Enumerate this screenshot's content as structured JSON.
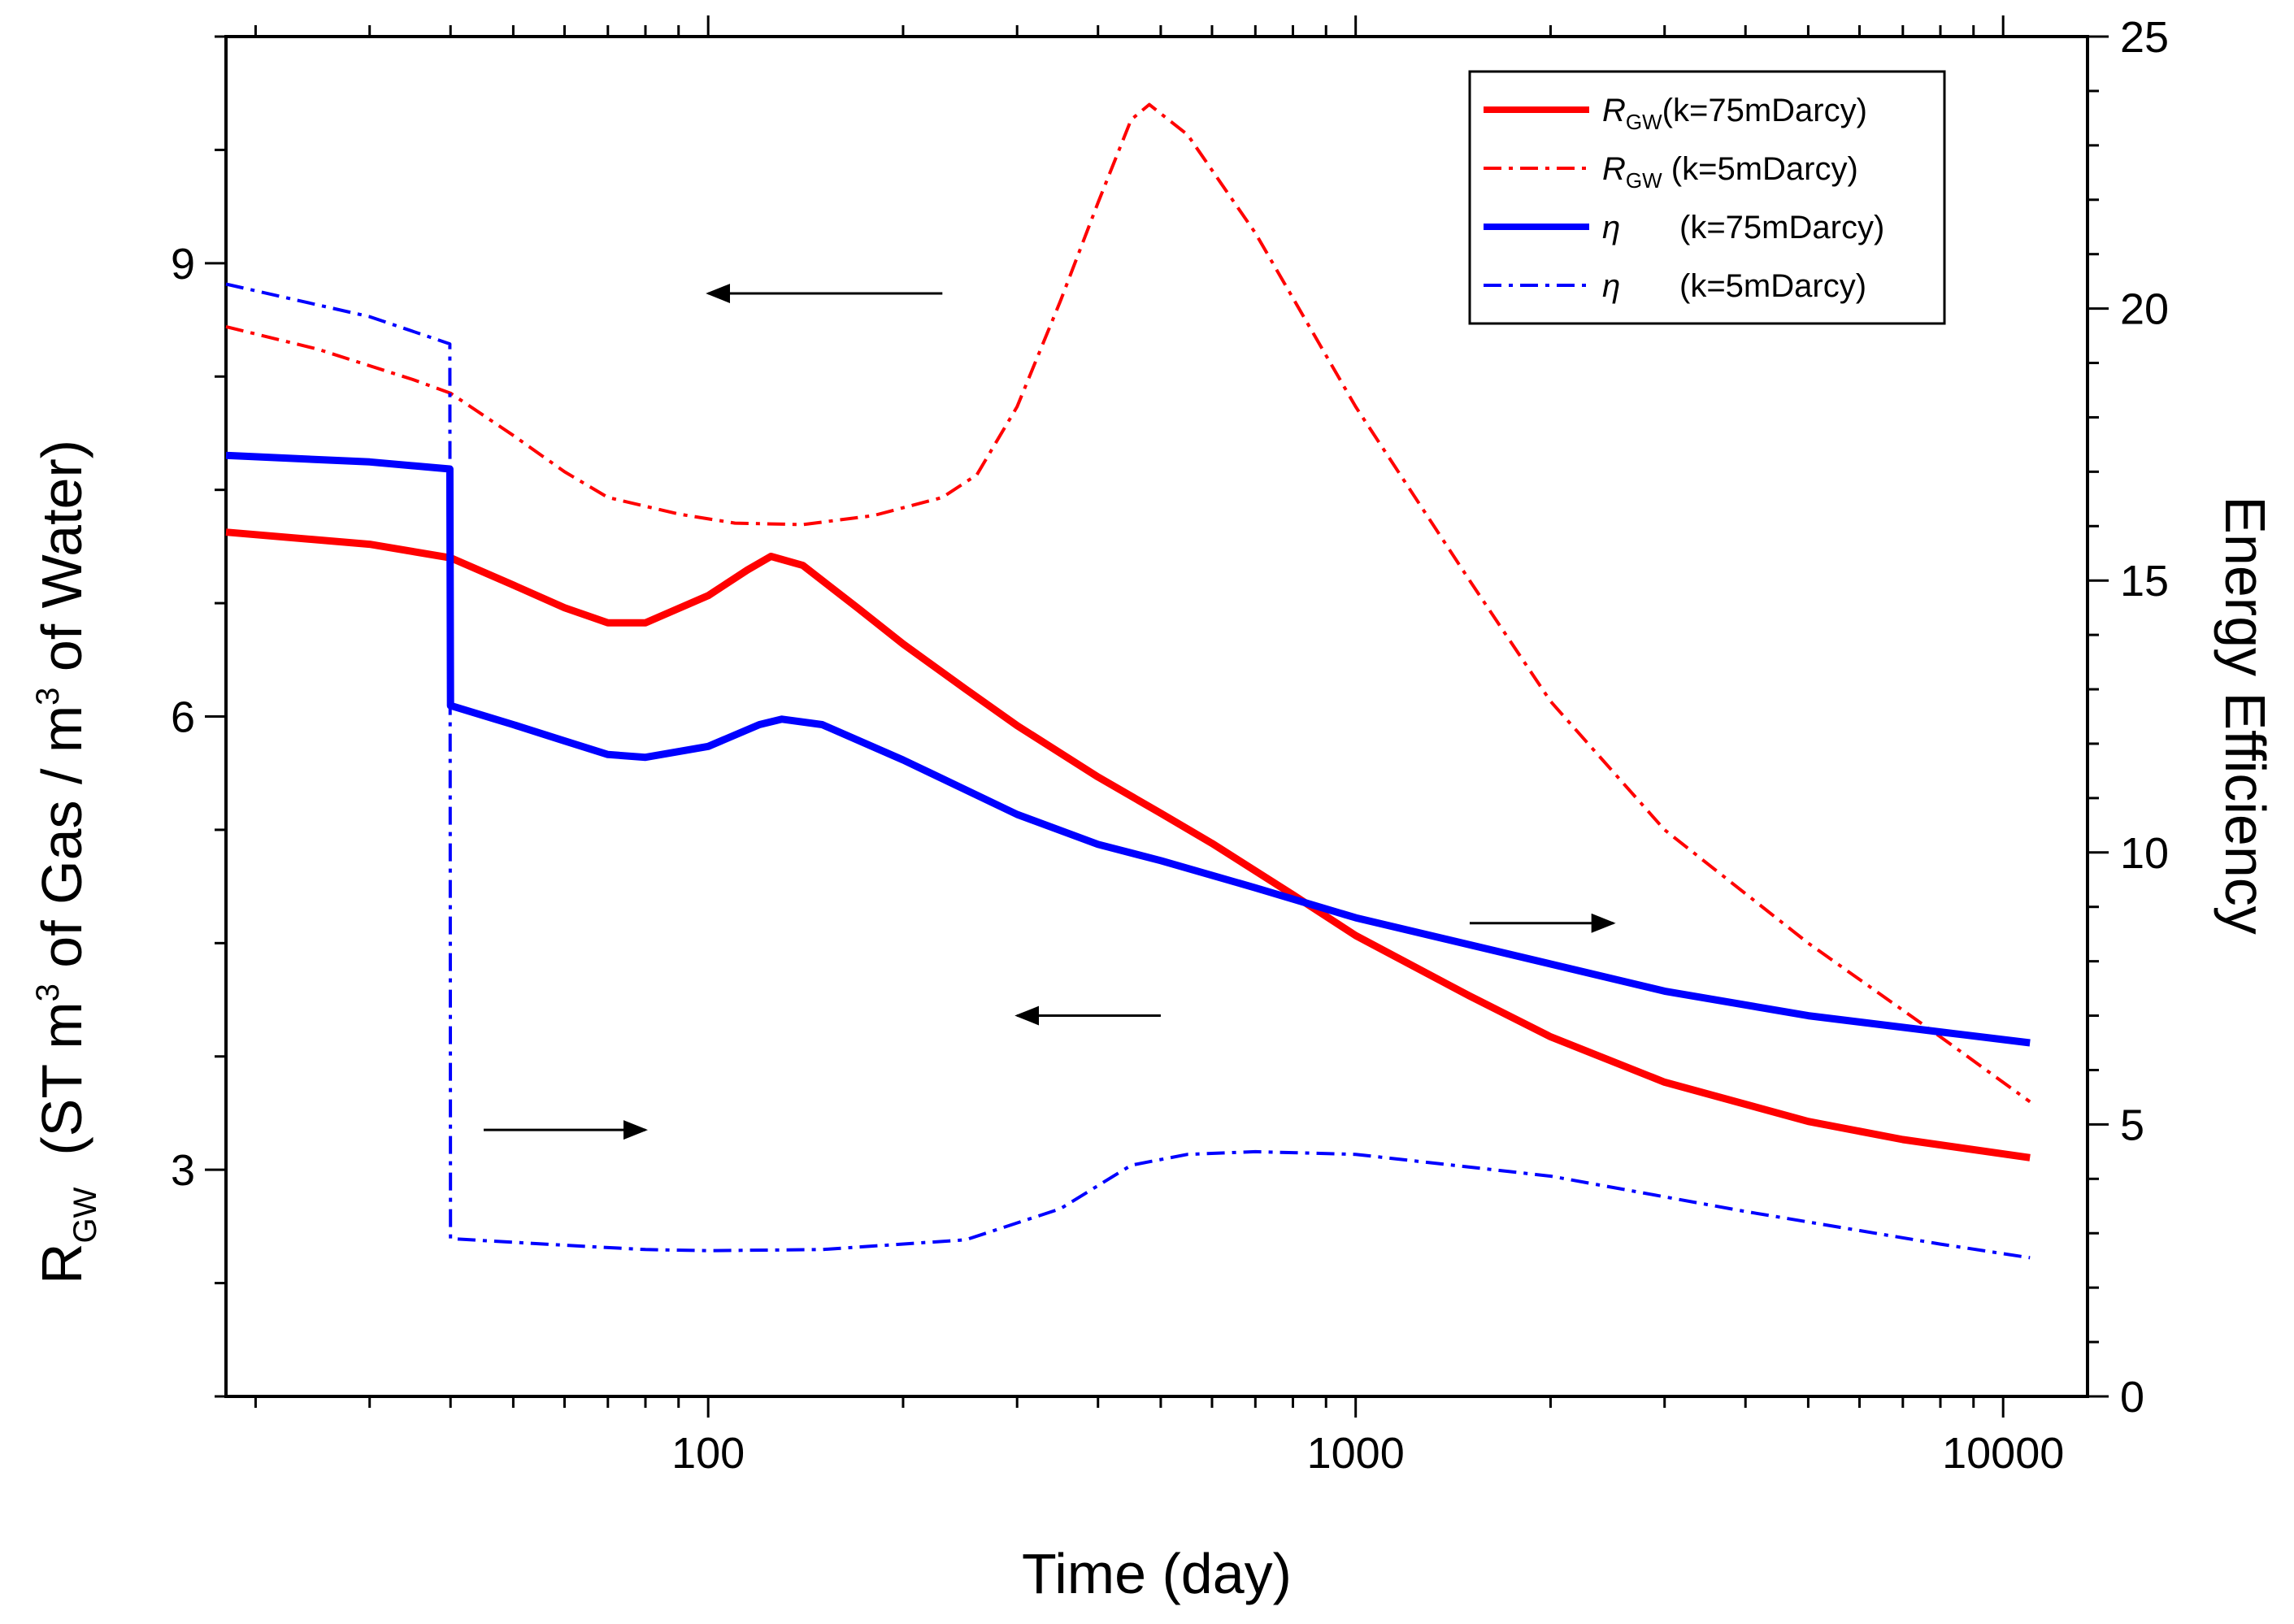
{
  "chart_data": {
    "type": "line",
    "x_scale": "log",
    "xlim": [
      18,
      13500
    ],
    "ylim_left": [
      1.5,
      10.5
    ],
    "ylim_right": [
      0,
      25
    ],
    "xlabel": "Time (day)",
    "ylabel_left": {
      "main": "R",
      "sub": "GW",
      "rest1": "  (ST m",
      "sup1": "3",
      "rest2": " of Gas / m",
      "sup2": "3",
      "rest3": " of Water)"
    },
    "ylabel_right": "Energy Efficiency",
    "x_ticks": [
      {
        "value": 100,
        "label": "100"
      },
      {
        "value": 1000,
        "label": "1000"
      },
      {
        "value": 10000,
        "label": "10000"
      }
    ],
    "y_left_ticks": [
      {
        "value": 3,
        "label": "3"
      },
      {
        "value": 6,
        "label": "6"
      },
      {
        "value": 9,
        "label": "9"
      }
    ],
    "y_right_ticks": [
      {
        "value": 0,
        "label": "0"
      },
      {
        "value": 5,
        "label": "5"
      },
      {
        "value": 10,
        "label": "10"
      },
      {
        "value": 15,
        "label": "15"
      },
      {
        "value": 20,
        "label": "20"
      },
      {
        "value": 25,
        "label": "25"
      }
    ],
    "series": [
      {
        "name": "R_GW (k=75mDarcy)",
        "axis": "left",
        "color": "#ff0000",
        "style": "solid",
        "points": [
          [
            18,
            7.22
          ],
          [
            30,
            7.14
          ],
          [
            40,
            7.05
          ],
          [
            50,
            6.87
          ],
          [
            60,
            6.72
          ],
          [
            70,
            6.62
          ],
          [
            80,
            6.62
          ],
          [
            100,
            6.8
          ],
          [
            115,
            6.97
          ],
          [
            125,
            7.06
          ],
          [
            140,
            7.0
          ],
          [
            170,
            6.72
          ],
          [
            200,
            6.48
          ],
          [
            250,
            6.18
          ],
          [
            300,
            5.94
          ],
          [
            400,
            5.6
          ],
          [
            500,
            5.36
          ],
          [
            600,
            5.16
          ],
          [
            800,
            4.82
          ],
          [
            1000,
            4.55
          ],
          [
            1500,
            4.15
          ],
          [
            2000,
            3.88
          ],
          [
            3000,
            3.58
          ],
          [
            5000,
            3.32
          ],
          [
            7000,
            3.2
          ],
          [
            11000,
            3.08
          ]
        ]
      },
      {
        "name": "R_GW (k=5mDarcy)",
        "axis": "left",
        "color": "#ff0000",
        "style": "dashdot",
        "points": [
          [
            18,
            8.58
          ],
          [
            25,
            8.43
          ],
          [
            35,
            8.23
          ],
          [
            40,
            8.14
          ],
          [
            50,
            7.86
          ],
          [
            60,
            7.62
          ],
          [
            70,
            7.45
          ],
          [
            90,
            7.34
          ],
          [
            110,
            7.28
          ],
          [
            140,
            7.27
          ],
          [
            180,
            7.33
          ],
          [
            230,
            7.45
          ],
          [
            260,
            7.6
          ],
          [
            300,
            8.05
          ],
          [
            350,
            8.75
          ],
          [
            400,
            9.4
          ],
          [
            450,
            9.95
          ],
          [
            480,
            10.05
          ],
          [
            550,
            9.85
          ],
          [
            700,
            9.2
          ],
          [
            1000,
            8.05
          ],
          [
            1500,
            6.9
          ],
          [
            2000,
            6.1
          ],
          [
            3000,
            5.25
          ],
          [
            5000,
            4.5
          ],
          [
            8000,
            3.88
          ],
          [
            11000,
            3.45
          ]
        ]
      },
      {
        "name": "eta (k=75mDarcy)",
        "axis": "right",
        "color": "#0000ff",
        "style": "solid",
        "points": [
          [
            18,
            17.3
          ],
          [
            30,
            17.18
          ],
          [
            39.9,
            17.05
          ],
          [
            40,
            12.7
          ],
          [
            50,
            12.35
          ],
          [
            60,
            12.05
          ],
          [
            70,
            11.8
          ],
          [
            80,
            11.75
          ],
          [
            100,
            11.95
          ],
          [
            120,
            12.35
          ],
          [
            130,
            12.45
          ],
          [
            150,
            12.35
          ],
          [
            200,
            11.7
          ],
          [
            300,
            10.7
          ],
          [
            400,
            10.15
          ],
          [
            500,
            9.85
          ],
          [
            700,
            9.35
          ],
          [
            1000,
            8.8
          ],
          [
            2000,
            7.95
          ],
          [
            3000,
            7.45
          ],
          [
            5000,
            7.0
          ],
          [
            8000,
            6.7
          ],
          [
            11000,
            6.5
          ]
        ]
      },
      {
        "name": "eta (k=5mDarcy)",
        "axis": "right",
        "color": "#0000ff",
        "style": "dashdot",
        "points": [
          [
            18,
            20.45
          ],
          [
            30,
            19.85
          ],
          [
            39.9,
            19.35
          ],
          [
            40,
            2.9
          ],
          [
            60,
            2.78
          ],
          [
            80,
            2.7
          ],
          [
            100,
            2.68
          ],
          [
            150,
            2.7
          ],
          [
            250,
            2.88
          ],
          [
            350,
            3.45
          ],
          [
            450,
            4.25
          ],
          [
            550,
            4.45
          ],
          [
            700,
            4.5
          ],
          [
            1000,
            4.45
          ],
          [
            2000,
            4.05
          ],
          [
            4000,
            3.4
          ],
          [
            8000,
            2.8
          ],
          [
            11000,
            2.55
          ]
        ]
      }
    ],
    "legend": {
      "position": "top-right",
      "entries": [
        {
          "symbol": "R",
          "sub": "GW",
          "text": "(k=75mDarcy)",
          "color": "#ff0000",
          "style": "solid"
        },
        {
          "symbol": "R",
          "sub": "GW",
          "text": " (k=5mDarcy)",
          "color": "#ff0000",
          "style": "dashdot"
        },
        {
          "symbol": "η",
          "sub": "",
          "text": "(k=75mDarcy)",
          "color": "#0000ff",
          "style": "solid"
        },
        {
          "symbol": "η",
          "sub": "",
          "text": "(k=5mDarcy)",
          "color": "#0000ff",
          "style": "dashdot"
        }
      ]
    },
    "annotations": [
      {
        "type": "arrow",
        "axis": "left",
        "from": [
          230,
          8.8
        ],
        "to": [
          100,
          8.8
        ]
      },
      {
        "type": "arrow",
        "axis": "right",
        "from": [
          1500,
          8.7
        ],
        "to": [
          2500,
          8.7
        ]
      },
      {
        "type": "arrow",
        "axis": "right",
        "from": [
          500,
          7.0
        ],
        "to": [
          300,
          7.0
        ]
      },
      {
        "type": "arrow",
        "axis": "right",
        "from": [
          45,
          4.9
        ],
        "to": [
          80,
          4.9
        ]
      }
    ]
  }
}
